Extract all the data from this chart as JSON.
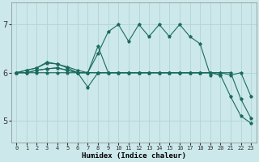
{
  "xlabel": "Humidex (Indice chaleur)",
  "bg_color": "#cce8ea",
  "grid_color": "#b0d4d8",
  "line_color": "#1a6b5a",
  "xlim": [
    -0.5,
    23.5
  ],
  "ylim": [
    4.55,
    7.45
  ],
  "yticks": [
    5,
    6,
    7
  ],
  "xticks": [
    0,
    1,
    2,
    3,
    4,
    5,
    6,
    7,
    8,
    9,
    10,
    11,
    12,
    13,
    14,
    15,
    16,
    17,
    18,
    19,
    20,
    21,
    22,
    23
  ],
  "series": [
    {
      "x": [
        0,
        1,
        2,
        3,
        4,
        5,
        6,
        7,
        8,
        9,
        10,
        11,
        12,
        13,
        14,
        15,
        16,
        17,
        18,
        19,
        20
      ],
      "y": [
        6.0,
        6.05,
        6.1,
        6.2,
        6.18,
        6.12,
        6.05,
        6.0,
        6.55,
        6.0,
        6.0,
        6.0,
        6.0,
        6.0,
        6.0,
        6.0,
        6.0,
        6.0,
        6.0,
        6.0,
        5.95
      ]
    },
    {
      "x": [
        0,
        1,
        2,
        3,
        4,
        5,
        6,
        7,
        8,
        9,
        10,
        11,
        12,
        13,
        14,
        15,
        16,
        17,
        18,
        19
      ],
      "y": [
        6.0,
        6.05,
        6.1,
        6.22,
        6.18,
        6.1,
        6.0,
        6.0,
        6.4,
        6.85,
        7.0,
        6.65,
        7.0,
        6.75,
        7.0,
        6.75,
        7.0,
        6.75,
        6.6,
        5.95
      ]
    },
    {
      "x": [
        0,
        1,
        2,
        3,
        4,
        5,
        6,
        7,
        8,
        9,
        10,
        11,
        12,
        13,
        14,
        15,
        16,
        17,
        18,
        19,
        20,
        21,
        22,
        23
      ],
      "y": [
        6.0,
        6.0,
        6.05,
        6.08,
        6.1,
        6.05,
        6.0,
        5.7,
        6.0,
        6.0,
        6.0,
        6.0,
        6.0,
        6.0,
        6.0,
        6.0,
        6.0,
        6.0,
        6.0,
        6.0,
        5.95,
        5.5,
        5.1,
        4.95
      ]
    },
    {
      "x": [
        0,
        1,
        2,
        3,
        4,
        5,
        6,
        7,
        8,
        9,
        10,
        11,
        12,
        13,
        14,
        15,
        16,
        17,
        18,
        19,
        20,
        21,
        22,
        23
      ],
      "y": [
        6.0,
        6.0,
        6.05,
        6.08,
        6.1,
        6.05,
        6.0,
        6.0,
        6.0,
        6.0,
        6.0,
        6.0,
        6.0,
        6.0,
        6.0,
        6.0,
        6.0,
        6.0,
        6.0,
        6.0,
        6.0,
        5.95,
        6.0,
        5.5
      ]
    },
    {
      "x": [
        0,
        1,
        2,
        3,
        4,
        5,
        6,
        7,
        8,
        9,
        10,
        11,
        12,
        13,
        14,
        15,
        16,
        17,
        18,
        19,
        20,
        21,
        22,
        23
      ],
      "y": [
        6.0,
        6.0,
        6.0,
        6.0,
        6.0,
        6.0,
        6.0,
        6.0,
        6.0,
        6.0,
        6.0,
        6.0,
        6.0,
        6.0,
        6.0,
        6.0,
        6.0,
        6.0,
        6.0,
        6.0,
        6.0,
        6.0,
        5.45,
        5.05
      ]
    }
  ]
}
